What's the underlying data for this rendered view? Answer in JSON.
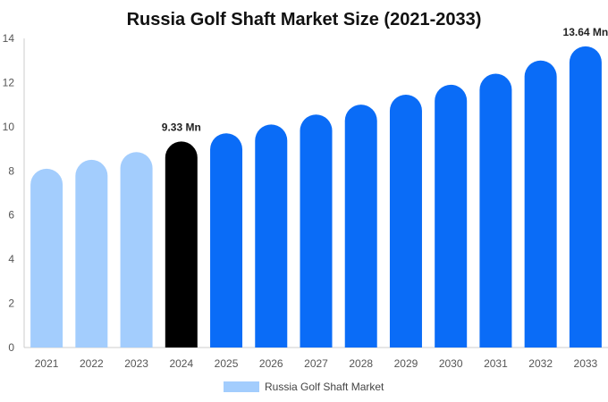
{
  "chart_data": {
    "type": "bar",
    "title": "Russia Golf Shaft Market Size (2021-2033)",
    "xlabel": "",
    "ylabel": "",
    "categories": [
      "2021",
      "2022",
      "2023",
      "2024",
      "2025",
      "2026",
      "2027",
      "2028",
      "2029",
      "2030",
      "2031",
      "2032",
      "2033"
    ],
    "series": [
      {
        "name": "Russia Golf Shaft Market",
        "values": [
          8.1,
          8.5,
          8.85,
          9.33,
          9.7,
          10.1,
          10.55,
          11.0,
          11.45,
          11.9,
          12.4,
          13.0,
          13.64
        ]
      }
    ],
    "data_labels": [
      {
        "category": "2024",
        "text": "9.33 Mn"
      },
      {
        "category": "2033",
        "text": "13.64 Mn"
      }
    ],
    "ylim": [
      0,
      14
    ],
    "yticks": [
      0,
      2,
      4,
      6,
      8,
      10,
      12,
      14
    ],
    "grid": false,
    "legend": "bottom-center",
    "colors": {
      "historic": "#a3cdfd",
      "base_year": "#000000",
      "forecast": "#0a6cf7",
      "axis": "#cccccc"
    },
    "color_groups": {
      "historic": [
        "2021",
        "2022",
        "2023"
      ],
      "base_year": [
        "2024"
      ],
      "forecast": [
        "2025",
        "2026",
        "2027",
        "2028",
        "2029",
        "2030",
        "2031",
        "2032",
        "2033"
      ]
    }
  }
}
